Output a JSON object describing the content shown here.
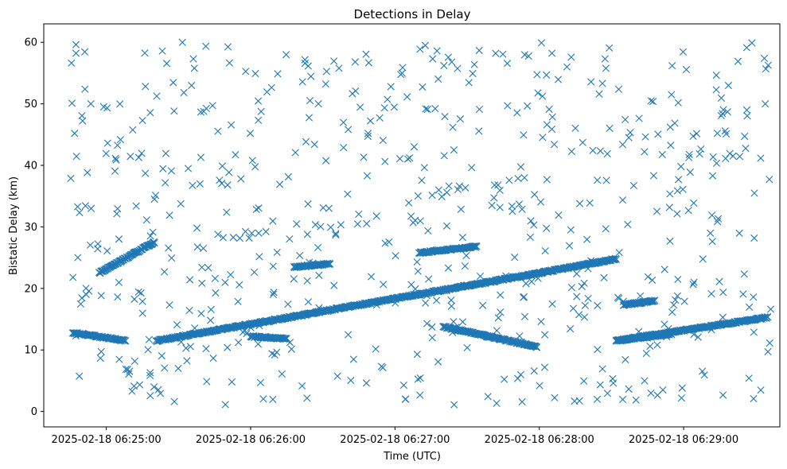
{
  "chart_data": {
    "type": "scatter",
    "title": "Detections in Delay",
    "xlabel": "Time (UTC)",
    "ylabel": "Bistatic Delay (km)",
    "marker": "x",
    "color": "#1f77b4",
    "grid": false,
    "legend": "none",
    "x_unit": "UTC datetime",
    "xlim": [
      "2025-02-18 06:24:34",
      "2025-02-18 06:29:40"
    ],
    "ylim": [
      -2.5,
      63
    ],
    "x_ticks": [
      "2025-02-18 06:25:00",
      "2025-02-18 06:26:00",
      "2025-02-18 06:27:00",
      "2025-02-18 06:28:00",
      "2025-02-18 06:29:00"
    ],
    "y_ticks": [
      0,
      10,
      20,
      30,
      40,
      50,
      60
    ],
    "tracks": [
      {
        "x_start": "2025-02-18 06:24:46",
        "x_end": "2025-02-18 06:25:08",
        "y_start": 12.8,
        "y_end": 11.5
      },
      {
        "x_start": "2025-02-18 06:24:57",
        "x_end": "2025-02-18 06:25:20",
        "y_start": 22.5,
        "y_end": 27.5
      },
      {
        "x_start": "2025-02-18 06:25:21",
        "x_end": "2025-02-18 06:28:00",
        "y_start": 11.5,
        "y_end": 22.5
      },
      {
        "x_start": "2025-02-18 06:26:00",
        "x_end": "2025-02-18 06:26:15",
        "y_start": 12.2,
        "y_end": 11.8
      },
      {
        "x_start": "2025-02-18 06:26:18",
        "x_end": "2025-02-18 06:26:33",
        "y_start": 23.5,
        "y_end": 24.0
      },
      {
        "x_start": "2025-02-18 06:27:10",
        "x_end": "2025-02-18 06:27:34",
        "y_start": 25.8,
        "y_end": 26.8
      },
      {
        "x_start": "2025-02-18 06:27:20",
        "x_end": "2025-02-18 06:27:59",
        "y_start": 13.8,
        "y_end": 10.5
      },
      {
        "x_start": "2025-02-18 06:28:00",
        "x_end": "2025-02-18 06:28:32",
        "y_start": 22.5,
        "y_end": 24.8
      },
      {
        "x_start": "2025-02-18 06:28:32",
        "x_end": "2025-02-18 06:29:35",
        "y_start": 11.5,
        "y_end": 15.3
      },
      {
        "x_start": "2025-02-18 06:28:32",
        "x_end": "2025-02-18 06:28:55",
        "y_start": 11.5,
        "y_end": 12.6
      },
      {
        "x_start": "2025-02-18 06:28:35",
        "x_end": "2025-02-18 06:28:48",
        "y_start": 17.3,
        "y_end": 18.0
      }
    ]
  }
}
